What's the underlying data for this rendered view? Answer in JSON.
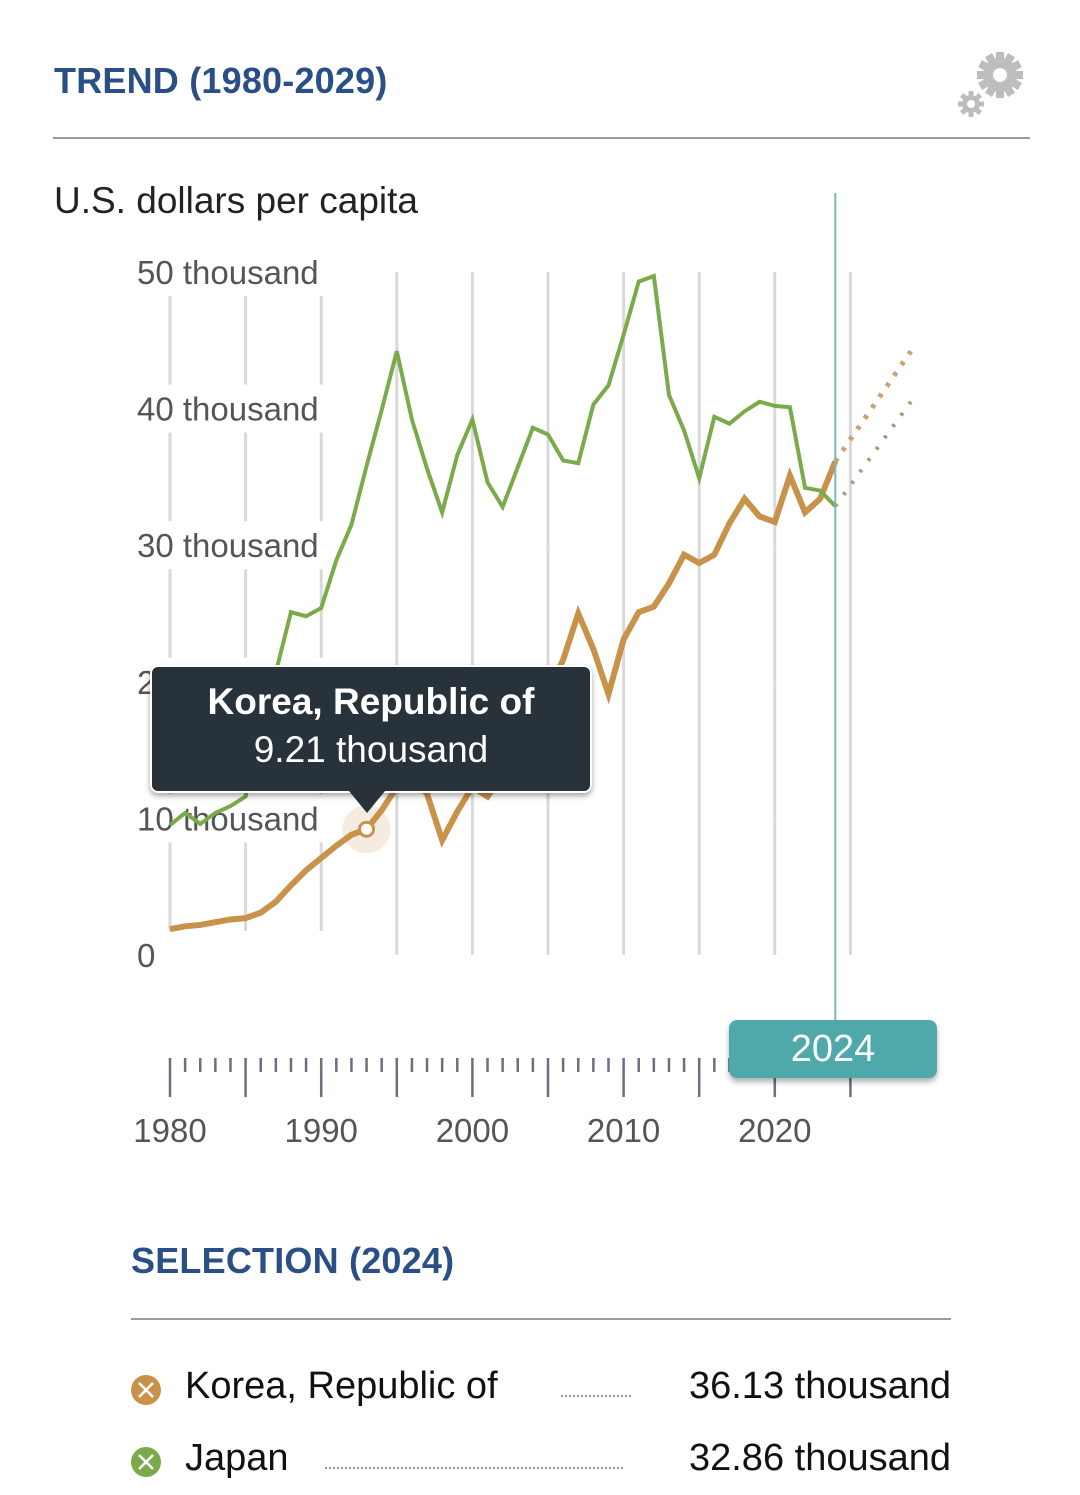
{
  "header": {
    "title": "TREND (1980-2029)",
    "settings_icon": "gears-icon"
  },
  "chart_data": {
    "type": "line",
    "title": "TREND (1980-2029)",
    "ylabel": "U.S. dollars per capita",
    "xlabel": "",
    "ylim": [
      0,
      50
    ],
    "xlim": [
      1980,
      2029
    ],
    "y_ticks": [
      {
        "value": 0,
        "label": "0"
      },
      {
        "value": 10,
        "label": "10 thousand"
      },
      {
        "value": 20,
        "label": "20 thousand"
      },
      {
        "value": 30,
        "label": "30 thousand"
      },
      {
        "value": 40,
        "label": "40 thousand"
      },
      {
        "value": 50,
        "label": "50 thousand"
      }
    ],
    "x_ticks": [
      {
        "value": 1980,
        "label": "1980"
      },
      {
        "value": 1990,
        "label": "1990"
      },
      {
        "value": 2000,
        "label": "2000"
      },
      {
        "value": 2010,
        "label": "2010"
      },
      {
        "value": 2020,
        "label": "2020"
      }
    ],
    "grid": "vertical every 5 years",
    "selected_year": 2024,
    "series": [
      {
        "name": "Korea, Republic of",
        "color": "#c8924a",
        "x": [
          1980,
          1981,
          1982,
          1983,
          1984,
          1985,
          1986,
          1987,
          1988,
          1989,
          1990,
          1991,
          1992,
          1993,
          1994,
          1995,
          1996,
          1997,
          1998,
          1999,
          2000,
          2001,
          2002,
          2003,
          2004,
          2005,
          2006,
          2007,
          2008,
          2009,
          2010,
          2011,
          2012,
          2013,
          2014,
          2015,
          2016,
          2017,
          2018,
          2019,
          2020,
          2021,
          2022,
          2023,
          2024
        ],
        "values": [
          1.9,
          2.1,
          2.2,
          2.4,
          2.6,
          2.7,
          3.1,
          3.9,
          5.1,
          6.2,
          7.1,
          8.0,
          8.8,
          9.21,
          10.6,
          12.3,
          13.0,
          11.8,
          8.4,
          10.5,
          12.3,
          11.6,
          13.2,
          14.9,
          17.0,
          19.4,
          21.6,
          25.0,
          22.4,
          19.1,
          23.1,
          25.1,
          25.5,
          27.2,
          29.3,
          28.7,
          29.3,
          31.6,
          33.4,
          32.1,
          31.7,
          35.1,
          32.4,
          33.4,
          36.13
        ]
      },
      {
        "name": "Japan",
        "color": "#7aaa4a",
        "x": [
          1980,
          1981,
          1982,
          1983,
          1984,
          1985,
          1986,
          1987,
          1988,
          1989,
          1990,
          1991,
          1992,
          1993,
          1994,
          1995,
          1996,
          1997,
          1998,
          1999,
          2000,
          2001,
          2002,
          2003,
          2004,
          2005,
          2006,
          2007,
          2008,
          2009,
          2010,
          2011,
          2012,
          2013,
          2014,
          2015,
          2016,
          2017,
          2018,
          2019,
          2020,
          2021,
          2022,
          2023,
          2024
        ],
        "values": [
          9.5,
          10.4,
          9.6,
          10.4,
          10.9,
          11.6,
          17.1,
          20.7,
          25.1,
          24.8,
          25.4,
          28.9,
          31.5,
          35.8,
          39.9,
          44.2,
          39.2,
          35.6,
          32.4,
          36.6,
          39.2,
          34.6,
          32.8,
          35.7,
          38.6,
          38.1,
          36.2,
          36.0,
          40.3,
          41.7,
          45.4,
          49.3,
          49.7,
          41.0,
          38.4,
          34.9,
          39.4,
          38.9,
          39.8,
          40.5,
          40.2,
          40.1,
          34.2,
          34.0,
          32.86
        ]
      }
    ],
    "projections": [
      {
        "name": "Korea, Republic of",
        "x": [
          2024,
          2029
        ],
        "values": [
          36.13,
          44.2
        ],
        "style": "dotted"
      },
      {
        "name": "Japan",
        "x": [
          2024,
          2029
        ],
        "values": [
          32.86,
          40.5
        ],
        "style": "dotted"
      }
    ]
  },
  "tooltip": {
    "series": "Korea, Republic of",
    "value": "9.21 thousand",
    "year": 1993
  },
  "year_badge": "2024",
  "selection": {
    "title": "SELECTION (2024)",
    "items": [
      {
        "name": "Korea, Republic of",
        "value": "36.13 thousand",
        "color": "#c8924a"
      },
      {
        "name": "Japan",
        "value": "32.86 thousand",
        "color": "#7aaa4a"
      }
    ]
  },
  "unit_label": "U.S. dollars per capita"
}
